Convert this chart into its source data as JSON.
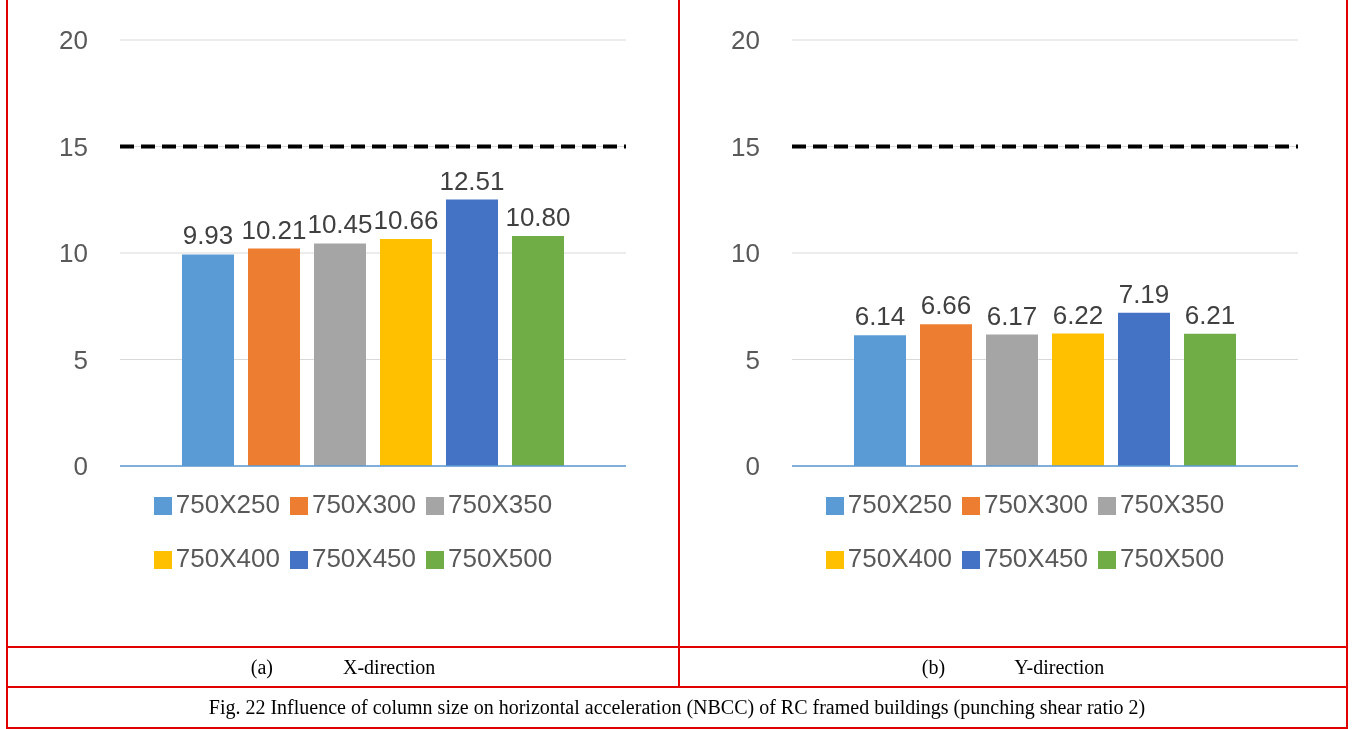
{
  "chart_data": [
    {
      "type": "bar",
      "categories": [
        null
      ],
      "series": [
        {
          "name": "750X250",
          "color": "#5b9bd5",
          "values": [
            9.93
          ],
          "value_labels": [
            "9.93"
          ]
        },
        {
          "name": "750X300",
          "color": "#ed7d31",
          "values": [
            10.21
          ],
          "value_labels": [
            "10.21"
          ]
        },
        {
          "name": "750X350",
          "color": "#a5a5a5",
          "values": [
            10.45
          ],
          "value_labels": [
            "10.45"
          ]
        },
        {
          "name": "750X400",
          "color": "#ffc000",
          "values": [
            10.66
          ],
          "value_labels": [
            "10.66"
          ]
        },
        {
          "name": "750X450",
          "color": "#4472c4",
          "values": [
            12.51
          ],
          "value_labels": [
            "12.51"
          ]
        },
        {
          "name": "750X500",
          "color": "#70ad47",
          "values": [
            10.8
          ],
          "value_labels": [
            "10.80"
          ]
        }
      ],
      "ylim": [
        0,
        20
      ],
      "yticks": [
        0,
        5,
        10,
        15,
        20
      ],
      "grid": "y",
      "legend": "bottom",
      "tick_labels": "y",
      "ref_lines": [
        {
          "axis": "y",
          "value": 15,
          "color": "#000000",
          "line_style": "dashed"
        }
      ],
      "annotations": [
        "(a)              X-direction",
        "Fig. 22 Influence of column size on horizontal acceleration (NBCC) of RC framed buildings  (punching shear ratio 2)"
      ]
    },
    {
      "type": "bar",
      "categories": [
        null
      ],
      "series": [
        {
          "name": "750X250",
          "color": "#5b9bd5",
          "values": [
            6.14
          ],
          "value_labels": [
            "6.14"
          ]
        },
        {
          "name": "750X300",
          "color": "#ed7d31",
          "values": [
            6.66
          ],
          "value_labels": [
            "6.66"
          ]
        },
        {
          "name": "750X350",
          "color": "#a5a5a5",
          "values": [
            6.17
          ],
          "value_labels": [
            "6.17"
          ]
        },
        {
          "name": "750X400",
          "color": "#ffc000",
          "values": [
            6.22
          ],
          "value_labels": [
            "6.22"
          ]
        },
        {
          "name": "750X450",
          "color": "#4472c4",
          "values": [
            7.19
          ],
          "value_labels": [
            "7.19"
          ]
        },
        {
          "name": "750X500",
          "color": "#70ad47",
          "values": [
            6.21
          ],
          "value_labels": [
            "6.21"
          ]
        }
      ],
      "ylim": [
        0,
        20
      ],
      "yticks": [
        0,
        5,
        10,
        15,
        20
      ],
      "grid": "y",
      "legend": "bottom",
      "tick_labels": "y",
      "ref_lines": [
        {
          "axis": "y",
          "value": 15,
          "color": "#000000",
          "line_style": "dashed"
        }
      ],
      "annotations": [
        "(b)              Y-direction"
      ]
    }
  ]
}
